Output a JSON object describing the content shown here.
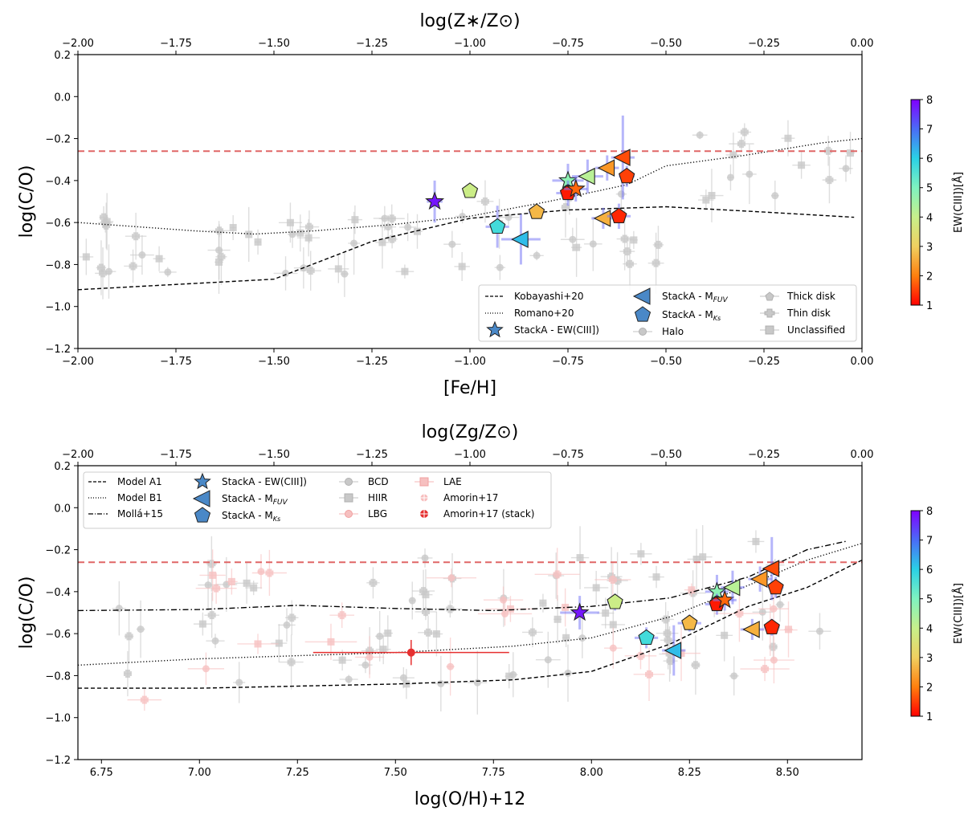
{
  "chart_data": [
    {
      "type": "scatter",
      "panel": "top",
      "title": "",
      "xlabel": "[Fe/H]",
      "ylabel": "log(C/O)",
      "top_xlabel": "log(Z∗/Z⊙)",
      "xlim": [
        -2.0,
        0.0
      ],
      "ylim": [
        -1.2,
        0.2
      ],
      "xticks": [
        "−2.00",
        "−1.75",
        "−1.50",
        "−1.25",
        "−1.00",
        "−0.75",
        "−0.50",
        "−0.25",
        "0.00"
      ],
      "xtick_values": [
        -2.0,
        -1.75,
        -1.5,
        -1.25,
        -1.0,
        -0.75,
        -0.5,
        -0.25,
        0.0
      ],
      "yticks": [
        "−1.2",
        "−1.0",
        "−0.8",
        "−0.6",
        "−0.4",
        "−0.2",
        "0.0",
        "0.2"
      ],
      "ytick_values": [
        -1.2,
        -1.0,
        -0.8,
        -0.6,
        -0.4,
        -0.2,
        0.0,
        0.2
      ],
      "solar_line_y": -0.26,
      "models": [
        {
          "name": "Kobayashi+20",
          "style": "dashed",
          "x": [
            -2.0,
            -1.5,
            -1.25,
            -1.0,
            -0.75,
            -0.5,
            -0.25,
            -0.02
          ],
          "y": [
            -0.92,
            -0.87,
            -0.69,
            -0.58,
            -0.54,
            -0.525,
            -0.55,
            -0.575
          ]
        },
        {
          "name": "Romano+20",
          "style": "dotted",
          "x": [
            -2.0,
            -1.7,
            -1.55,
            -1.4,
            -1.2,
            -1.0,
            -0.8,
            -0.6,
            -0.5,
            -0.3,
            -0.1,
            0.0
          ],
          "y": [
            -0.6,
            -0.64,
            -0.655,
            -0.64,
            -0.61,
            -0.57,
            -0.5,
            -0.42,
            -0.33,
            -0.28,
            -0.22,
            -0.2
          ]
        }
      ],
      "stack_points": [
        {
          "marker": "star",
          "x": -1.09,
          "y": -0.5,
          "xerr": 0.02,
          "yerr": 0.1,
          "ew": 7.8
        },
        {
          "marker": "pentagon",
          "x": -1.0,
          "y": -0.45,
          "xerr": 0.0,
          "yerr": 0.0,
          "ew": 3.9
        },
        {
          "marker": "pentagon",
          "x": -0.93,
          "y": -0.62,
          "xerr": 0.03,
          "yerr": 0.1,
          "ew": 5.7
        },
        {
          "marker": "triangle",
          "x": -0.87,
          "y": -0.68,
          "xerr": 0.05,
          "yerr": 0.12,
          "ew": 6.2
        },
        {
          "marker": "pentagon",
          "x": -0.83,
          "y": -0.55,
          "xerr": 0.02,
          "yerr": 0.02,
          "ew": 2.7
        },
        {
          "marker": "star",
          "x": -0.75,
          "y": -0.4,
          "xerr": 0.04,
          "yerr": 0.08,
          "ew": 4.8
        },
        {
          "marker": "pentagon",
          "x": -0.75,
          "y": -0.46,
          "xerr": 0.03,
          "yerr": 0.06,
          "ew": 1.2
        },
        {
          "marker": "star",
          "x": -0.73,
          "y": -0.44,
          "xerr": 0.03,
          "yerr": 0.06,
          "ew": 1.8
        },
        {
          "marker": "triangle",
          "x": -0.7,
          "y": -0.38,
          "xerr": 0.04,
          "yerr": 0.08,
          "ew": 4.2
        },
        {
          "marker": "triangle",
          "x": -0.65,
          "y": -0.34,
          "xerr": 0.03,
          "yerr": 0.06,
          "ew": 2.3
        },
        {
          "marker": "triangle",
          "x": -0.66,
          "y": -0.58,
          "xerr": 0.03,
          "yerr": 0.05,
          "ew": 2.6
        },
        {
          "marker": "pentagon",
          "x": -0.62,
          "y": -0.57,
          "xerr": 0.03,
          "yerr": 0.06,
          "ew": 1.3
        },
        {
          "marker": "triangle",
          "x": -0.61,
          "y": -0.29,
          "xerr": 0.03,
          "yerr": 0.2,
          "ew": 1.6
        },
        {
          "marker": "pentagon",
          "x": -0.6,
          "y": -0.38,
          "xerr": 0.02,
          "yerr": 0.05,
          "ew": 1.5
        }
      ],
      "legend": [
        "Kobayashi+20",
        "Romano+20",
        "StackA - EW(CIII])",
        "StackA - M",
        "StackA - M",
        "Halo",
        "Thick disk",
        "Thin disk",
        "Unclassified"
      ],
      "legend_subscripts": [
        "FUV",
        "Ks"
      ]
    },
    {
      "type": "scatter",
      "panel": "bottom",
      "title": "",
      "xlabel": "log(O/H)+12",
      "ylabel": "log(C/O)",
      "top_xlabel": "log(Zg/Z⊙)",
      "xlim": [
        6.69,
        8.69
      ],
      "ylim": [
        -1.2,
        0.2
      ],
      "xticks": [
        "6.75",
        "7.00",
        "7.25",
        "7.50",
        "7.75",
        "8.00",
        "8.25",
        "8.50"
      ],
      "xtick_values": [
        6.75,
        7.0,
        7.25,
        7.5,
        7.75,
        8.0,
        8.25,
        8.5
      ],
      "top_xticks": [
        "−2.00",
        "−1.75",
        "−1.50",
        "−1.25",
        "−1.00",
        "−0.75",
        "−0.50",
        "−0.25",
        "0.00"
      ],
      "top_xtick_values": [
        -2.0,
        -1.75,
        -1.5,
        -1.25,
        -1.0,
        -0.75,
        -0.5,
        -0.25,
        0.0
      ],
      "yticks": [
        "−1.2",
        "−1.0",
        "−0.8",
        "−0.6",
        "−0.4",
        "−0.2",
        "0.0",
        "0.2"
      ],
      "ytick_values": [
        -1.2,
        -1.0,
        -0.8,
        -0.6,
        -0.4,
        -0.2,
        0.0,
        0.2
      ],
      "solar_line_y": -0.26,
      "models": [
        {
          "name": "Model A1",
          "style": "dashed",
          "x": [
            6.69,
            7.0,
            7.5,
            7.8,
            8.0,
            8.2,
            8.4,
            8.55,
            8.69
          ],
          "y": [
            -0.86,
            -0.86,
            -0.84,
            -0.82,
            -0.78,
            -0.65,
            -0.47,
            -0.38,
            -0.25
          ]
        },
        {
          "name": "Model B1",
          "style": "dotted",
          "x": [
            6.69,
            7.0,
            7.5,
            7.8,
            8.0,
            8.2,
            8.4,
            8.55,
            8.69
          ],
          "y": [
            -0.75,
            -0.72,
            -0.69,
            -0.66,
            -0.62,
            -0.52,
            -0.37,
            -0.25,
            -0.17
          ]
        },
        {
          "name": "Mollá+15",
          "style": "dashdot",
          "x": [
            6.69,
            7.0,
            7.25,
            7.5,
            7.75,
            8.0,
            8.2,
            8.4,
            8.55,
            8.65
          ],
          "y": [
            -0.49,
            -0.485,
            -0.465,
            -0.48,
            -0.49,
            -0.47,
            -0.43,
            -0.33,
            -0.2,
            -0.16
          ]
        }
      ],
      "comparison_points": [
        {
          "x": 7.54,
          "y": -0.69,
          "xerr": 0.25,
          "yerr": 0.06,
          "group": "Amorin+17 (stack)"
        }
      ],
      "stack_points": [
        {
          "marker": "star",
          "x": 7.97,
          "y": -0.5,
          "xerr": 0.05,
          "yerr": 0.08,
          "ew": 7.8
        },
        {
          "marker": "pentagon",
          "x": 8.06,
          "y": -0.45,
          "xerr": 0.02,
          "yerr": 0.04,
          "ew": 3.9
        },
        {
          "marker": "pentagon",
          "x": 8.14,
          "y": -0.62,
          "xerr": 0.03,
          "yerr": 0.05,
          "ew": 5.7
        },
        {
          "marker": "triangle",
          "x": 8.21,
          "y": -0.68,
          "xerr": 0.03,
          "yerr": 0.12,
          "ew": 6.2
        },
        {
          "marker": "pentagon",
          "x": 8.25,
          "y": -0.55,
          "xerr": 0.03,
          "yerr": 0.04,
          "ew": 2.7
        },
        {
          "marker": "star",
          "x": 8.32,
          "y": -0.4,
          "xerr": 0.03,
          "yerr": 0.08,
          "ew": 4.8
        },
        {
          "marker": "pentagon",
          "x": 8.32,
          "y": -0.46,
          "xerr": 0.03,
          "yerr": 0.05,
          "ew": 1.2
        },
        {
          "marker": "star",
          "x": 8.34,
          "y": -0.44,
          "xerr": 0.03,
          "yerr": 0.05,
          "ew": 1.8
        },
        {
          "marker": "triangle",
          "x": 8.36,
          "y": -0.38,
          "xerr": 0.03,
          "yerr": 0.08,
          "ew": 4.2
        },
        {
          "marker": "triangle",
          "x": 8.43,
          "y": -0.34,
          "xerr": 0.03,
          "yerr": 0.06,
          "ew": 2.3
        },
        {
          "marker": "triangle",
          "x": 8.41,
          "y": -0.58,
          "xerr": 0.03,
          "yerr": 0.05,
          "ew": 2.6
        },
        {
          "marker": "pentagon",
          "x": 8.46,
          "y": -0.57,
          "xerr": 0.02,
          "yerr": 0.04,
          "ew": 1.3
        },
        {
          "marker": "triangle",
          "x": 8.46,
          "y": -0.29,
          "xerr": 0.02,
          "yerr": 0.15,
          "ew": 1.6
        },
        {
          "marker": "pentagon",
          "x": 8.47,
          "y": -0.38,
          "xerr": 0.02,
          "yerr": 0.05,
          "ew": 1.5
        }
      ],
      "legend": [
        "Model A1",
        "Model B1",
        "Mollá+15",
        "StackA - EW(CIII])",
        "StackA - M",
        "StackA - M",
        "BCD",
        "HIIR",
        "LBG",
        "LAE",
        "Amorin+17",
        "Amorin+17 (stack)"
      ],
      "legend_subscripts": [
        "FUV",
        "Ks"
      ]
    }
  ],
  "colorbar": {
    "label": "EW(CIII])[Å]",
    "ticks": [
      "1",
      "2",
      "3",
      "4",
      "5",
      "6",
      "7",
      "8"
    ],
    "tick_values": [
      1,
      2,
      3,
      4,
      5,
      6,
      7,
      8
    ],
    "range": [
      1,
      8
    ],
    "colors": [
      "#ff0000",
      "#ff7f0e",
      "#f0d060",
      "#c7f08b",
      "#7ff3c0",
      "#2ad1e6",
      "#4a6cf7",
      "#8000ff"
    ]
  },
  "colors": {
    "solar_line": "#e06666",
    "reference_gray": "#9e9e9e",
    "reference_pink": "#f4a0a0",
    "error_blue": "#7a7af5",
    "stack_legend": "#4a88c7",
    "amorin_stack": "#e63030"
  }
}
